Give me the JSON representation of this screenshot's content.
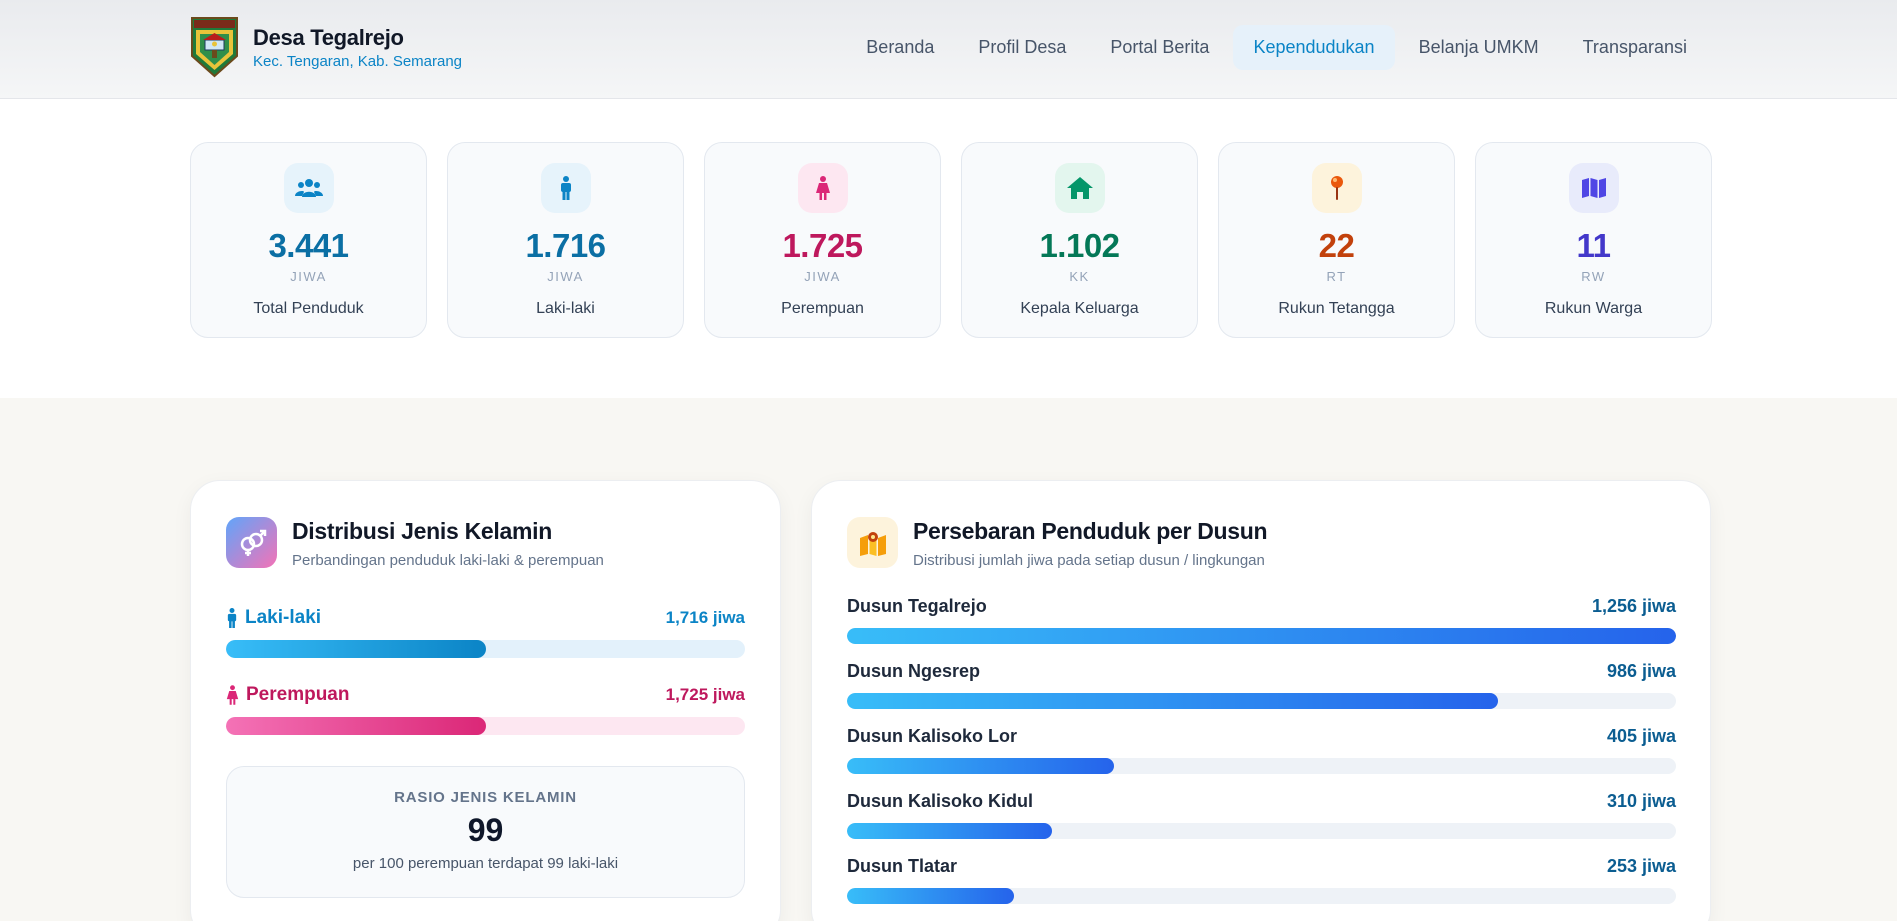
{
  "header": {
    "title": "Desa Tegalrejo",
    "subtitle": "Kec. Tengaran, Kab. Semarang",
    "nav": [
      {
        "label": "Beranda",
        "active": false
      },
      {
        "label": "Profil Desa",
        "active": false
      },
      {
        "label": "Portal Berita",
        "active": false
      },
      {
        "label": "Kependudukan",
        "active": true
      },
      {
        "label": "Belanja UMKM",
        "active": false
      },
      {
        "label": "Transparansi",
        "active": false
      }
    ]
  },
  "stats": [
    {
      "value": "3.441",
      "unit": "JIWA",
      "label": "Total Penduduk",
      "icon": "users-icon",
      "color": "#0b6fa4",
      "bg": "#e6f3fb"
    },
    {
      "value": "1.716",
      "unit": "JIWA",
      "label": "Laki-laki",
      "icon": "male-icon",
      "color": "#0b6fa4",
      "bg": "#e6f3fb"
    },
    {
      "value": "1.725",
      "unit": "JIWA",
      "label": "Perempuan",
      "icon": "female-icon",
      "color": "#be185d",
      "bg": "#fde7f1"
    },
    {
      "value": "1.102",
      "unit": "KK",
      "label": "Kepala Keluarga",
      "icon": "home-icon",
      "color": "#047857",
      "bg": "#e3f6ee"
    },
    {
      "value": "22",
      "unit": "RT",
      "label": "Rukun Tetangga",
      "icon": "pin-icon",
      "color": "#c2410c",
      "bg": "#fdf3dc"
    },
    {
      "value": "11",
      "unit": "RW",
      "label": "Rukun Warga",
      "icon": "map-icon",
      "color": "#4338ca",
      "bg": "#e8ebfb"
    }
  ],
  "gender": {
    "title": "Distribusi Jenis Kelamin",
    "subtitle": "Perbandingan penduduk laki-laki & perempuan",
    "rows": [
      {
        "name": "Laki-laki",
        "value": "1,716 jiwa",
        "fraction": 0.5,
        "color": "#0b84c6",
        "track": "#e3f1fb",
        "fill": "linear-gradient(90deg,#38bdf8,#0b84c6)"
      },
      {
        "name": "Perempuan",
        "value": "1,725 jiwa",
        "fraction": 0.5,
        "color": "#be185d",
        "track": "#fde7f1",
        "fill": "linear-gradient(90deg,#f472b6,#db2777)"
      }
    ],
    "ratio": {
      "label": "RASIO JENIS KELAMIN",
      "value": "99",
      "note": "per 100 perempuan terdapat 99 laki-laki"
    }
  },
  "dusun": {
    "title": "Persebaran Penduduk per Dusun",
    "subtitle": "Distribusi jumlah jiwa pada setiap dusun / lingkungan",
    "max": 1256,
    "rows": [
      {
        "name": "Dusun Tegalrejo",
        "count": 1256,
        "value": "1,256 jiwa"
      },
      {
        "name": "Dusun Ngesrep",
        "count": 986,
        "value": "986 jiwa"
      },
      {
        "name": "Dusun Kalisoko Lor",
        "count": 405,
        "value": "405 jiwa"
      },
      {
        "name": "Dusun Kalisoko Kidul",
        "count": 310,
        "value": "310 jiwa"
      },
      {
        "name": "Dusun Tlatar",
        "count": 253,
        "value": "253 jiwa"
      }
    ]
  }
}
